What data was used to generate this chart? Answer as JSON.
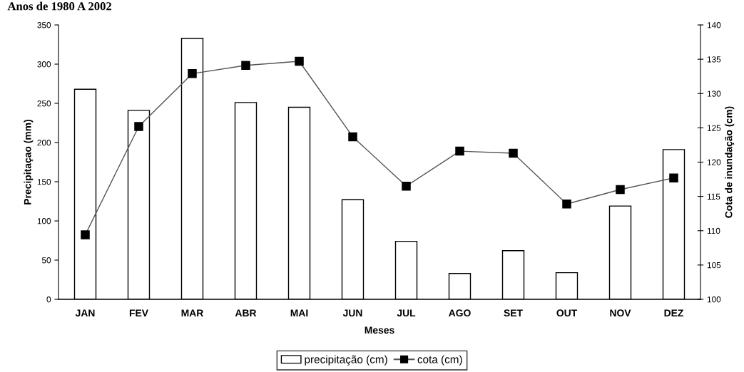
{
  "chart_data": {
    "type": "bar",
    "title": "Anos de 1980 A 2002",
    "xlabel": "Meses",
    "ylabel": "Precipitaçao (mm)",
    "y2label": "Cota de inundação (cm)",
    "categories": [
      "JAN",
      "FEV",
      "MAR",
      "ABR",
      "MAI",
      "JUN",
      "JUL",
      "AGO",
      "SET",
      "OUT",
      "NOV",
      "DEZ"
    ],
    "series": [
      {
        "name": "precipitação (cm)",
        "color": "#ffffff",
        "values": [
          268,
          241,
          333,
          251,
          245,
          127,
          74,
          33,
          62,
          34,
          119,
          191
        ]
      },
      {
        "name": "cota (cm)",
        "type": "line",
        "axis": "y2",
        "color": "#000000",
        "marker": "square",
        "values": [
          109.4,
          125.2,
          132.9,
          134.1,
          134.7,
          123.7,
          116.5,
          121.6,
          121.3,
          113.9,
          116.0,
          117.7
        ]
      }
    ],
    "ylim": [
      0,
      350
    ],
    "yticks": [
      0,
      50,
      100,
      150,
      200,
      250,
      300,
      350
    ],
    "y2lim": [
      100,
      140
    ],
    "y2ticks": [
      100,
      105,
      110,
      115,
      120,
      125,
      130,
      135,
      140
    ],
    "grid": false,
    "legend": "bottom"
  }
}
